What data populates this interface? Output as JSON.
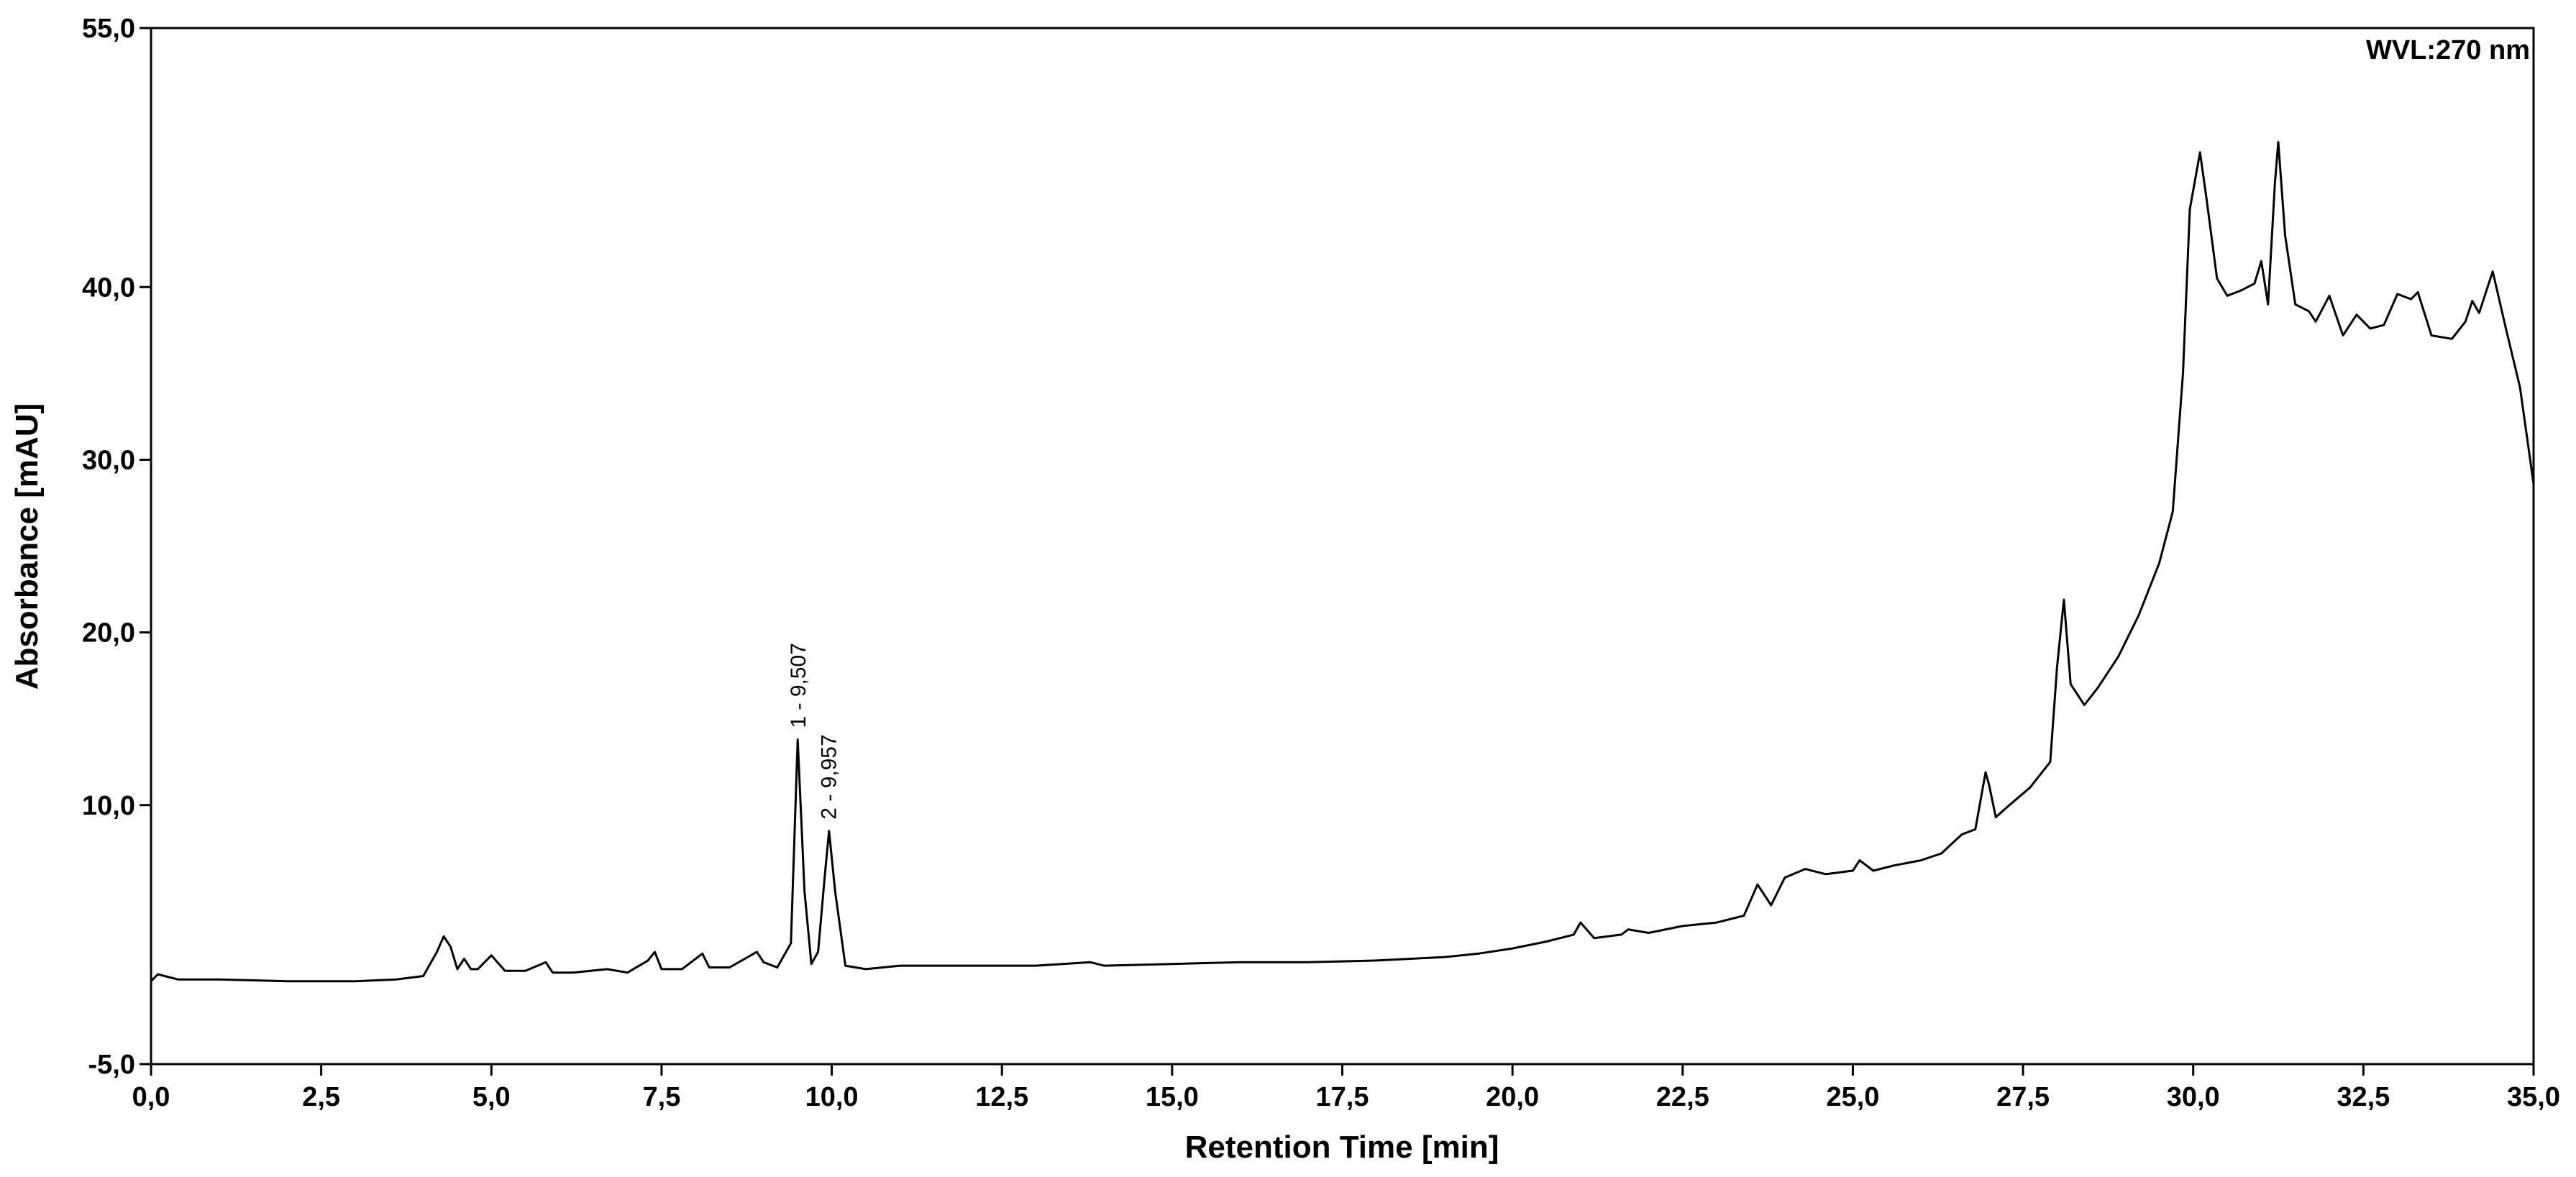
{
  "chart_data": {
    "type": "line",
    "xlabel": "Retention Time [min]",
    "ylabel": "Absorbance [mAU]",
    "annotation": "WVL:270 nm",
    "xlim": [
      0,
      35
    ],
    "ylim": [
      -5,
      55
    ],
    "xticks": [
      {
        "value": 0,
        "label": "0,0"
      },
      {
        "value": 2.5,
        "label": "2,5"
      },
      {
        "value": 5,
        "label": "5,0"
      },
      {
        "value": 7.5,
        "label": "7,5"
      },
      {
        "value": 10,
        "label": "10,0"
      },
      {
        "value": 12.5,
        "label": "12,5"
      },
      {
        "value": 15,
        "label": "15,0"
      },
      {
        "value": 17.5,
        "label": "17,5"
      },
      {
        "value": 20,
        "label": "20,0"
      },
      {
        "value": 22.5,
        "label": "22,5"
      },
      {
        "value": 25,
        "label": "25,0"
      },
      {
        "value": 27.5,
        "label": "27,5"
      },
      {
        "value": 30,
        "label": "30,0"
      },
      {
        "value": 32.5,
        "label": "32,5"
      },
      {
        "value": 35,
        "label": "35,0"
      }
    ],
    "yticks": [
      {
        "value": -5,
        "label": "-5,0"
      },
      {
        "value": 10,
        "label": "10,0"
      },
      {
        "value": 20,
        "label": "20,0"
      },
      {
        "value": 30,
        "label": "30,0"
      },
      {
        "value": 40,
        "label": "40,0"
      },
      {
        "value": 55,
        "label": "55,0"
      }
    ],
    "peaks": [
      {
        "label": "1 - 9,507",
        "x": 9.507,
        "y": 13.8
      },
      {
        "label": "2 - 9,957",
        "x": 9.957,
        "y": 8.5
      }
    ],
    "series": [
      {
        "color": "#000000",
        "x": [
          0,
          0.1,
          0.2,
          0.4,
          1,
          2,
          3,
          3.6,
          4.0,
          4.2,
          4.3,
          4.4,
          4.5,
          4.6,
          4.7,
          4.8,
          5.0,
          5.2,
          5.5,
          5.8,
          5.9,
          6.2,
          6.7,
          7.0,
          7.3,
          7.4,
          7.5,
          7.8,
          8.1,
          8.2,
          8.5,
          8.9,
          9.0,
          9.2,
          9.4,
          9.5,
          9.6,
          9.7,
          9.8,
          9.9,
          9.96,
          10.05,
          10.2,
          10.5,
          11,
          12,
          13,
          13.8,
          14,
          15,
          16,
          17,
          18,
          19,
          19.5,
          20,
          20.5,
          20.9,
          21.0,
          21.2,
          21.6,
          21.7,
          22,
          22.5,
          23,
          23.4,
          23.6,
          23.8,
          24.0,
          24.3,
          24.6,
          25,
          25.1,
          25.3,
          25.6,
          26,
          26.3,
          26.6,
          26.8,
          26.95,
          27.0,
          27.1,
          27.3,
          27.6,
          27.9,
          28.0,
          28.1,
          28.2,
          28.4,
          28.6,
          28.9,
          29.2,
          29.5,
          29.7,
          29.85,
          29.95,
          30.1,
          30.2,
          30.35,
          30.5,
          30.7,
          30.9,
          31.0,
          31.1,
          31.2,
          31.25,
          31.35,
          31.5,
          31.7,
          31.8,
          32.0,
          32.2,
          32.4,
          32.6,
          32.8,
          33.0,
          33.2,
          33.3,
          33.5,
          33.8,
          34.0,
          34.1,
          34.2,
          34.4,
          34.6,
          34.8,
          35.0
        ],
        "values": [
          -0.2,
          0.2,
          0.1,
          -0.1,
          -0.1,
          -0.2,
          -0.2,
          -0.1,
          0.1,
          1.5,
          2.4,
          1.8,
          0.5,
          1.1,
          0.5,
          0.5,
          1.3,
          0.4,
          0.4,
          0.9,
          0.3,
          0.3,
          0.5,
          0.3,
          1.0,
          1.5,
          0.5,
          0.5,
          1.4,
          0.6,
          0.6,
          1.5,
          0.9,
          0.6,
          2,
          13.8,
          5,
          0.8,
          1.5,
          6,
          8.5,
          5,
          0.7,
          0.5,
          0.7,
          0.7,
          0.7,
          0.9,
          0.7,
          0.8,
          0.9,
          0.9,
          1.0,
          1.2,
          1.4,
          1.7,
          2.1,
          2.5,
          3.2,
          2.3,
          2.5,
          2.8,
          2.6,
          3.0,
          3.2,
          3.6,
          5.4,
          4.2,
          5.8,
          6.3,
          6.0,
          6.2,
          6.8,
          6.2,
          6.5,
          6.8,
          7.2,
          8.3,
          8.6,
          11.9,
          11.2,
          9.3,
          10,
          11,
          12.5,
          18,
          21.9,
          17,
          15.8,
          16.8,
          18.6,
          21,
          24,
          27,
          35,
          44.5,
          47.8,
          45,
          40.5,
          39.5,
          39.8,
          40.2,
          41.5,
          39,
          46,
          48.4,
          43,
          39,
          38.6,
          38,
          39.5,
          37.2,
          38.4,
          37.6,
          37.8,
          39.6,
          39.3,
          39.7,
          37.2,
          37,
          38,
          39.2,
          38.5,
          40.9,
          37.5,
          34.2,
          28.6
        ]
      }
    ]
  }
}
